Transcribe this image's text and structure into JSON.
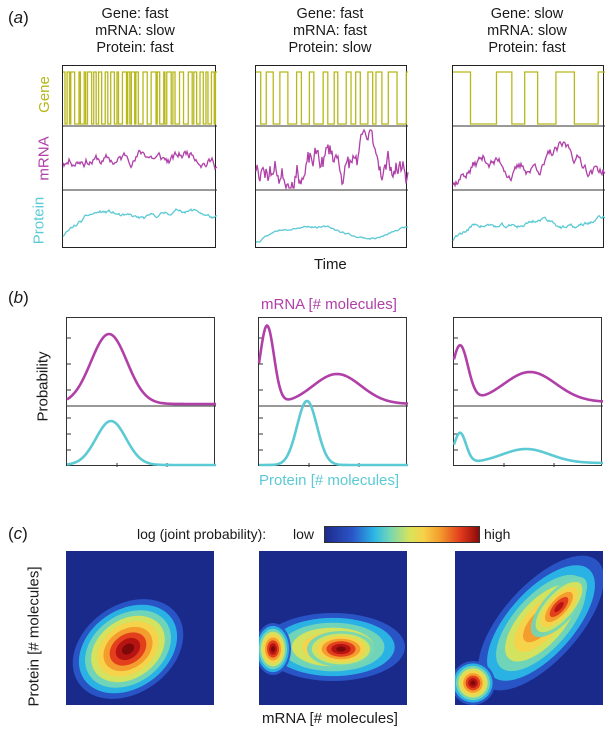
{
  "panel_labels": {
    "a": "a",
    "b": "b",
    "c": "c"
  },
  "panel_a": {
    "columns": [
      {
        "gene": "Gene: fast",
        "mrna": "mRNA: slow",
        "protein": "Protein: fast"
      },
      {
        "gene": "Gene: fast",
        "mrna": "mRNA: fast",
        "protein": "Protein: slow"
      },
      {
        "gene": "Gene: slow",
        "mrna": "mRNA: slow",
        "protein": "Protein: fast"
      }
    ],
    "row_labels": {
      "gene": "Gene",
      "mrna": "mRNA",
      "protein": "Protein"
    },
    "xlabel": "Time"
  },
  "panel_b": {
    "top_label": "mRNA [# molecules]",
    "ylabel": "Probability",
    "bottom_label": "Protein [# molecules]"
  },
  "panel_c": {
    "legend_prefix": "log (joint probability):",
    "legend_low": "low",
    "legend_high": "high",
    "ylabel": "Protein [# molecules]",
    "xlabel": "mRNA [# molecules]"
  },
  "colors": {
    "gene": "#b8b81c",
    "mrna": "#b040a8",
    "protein": "#5ccad4"
  }
}
